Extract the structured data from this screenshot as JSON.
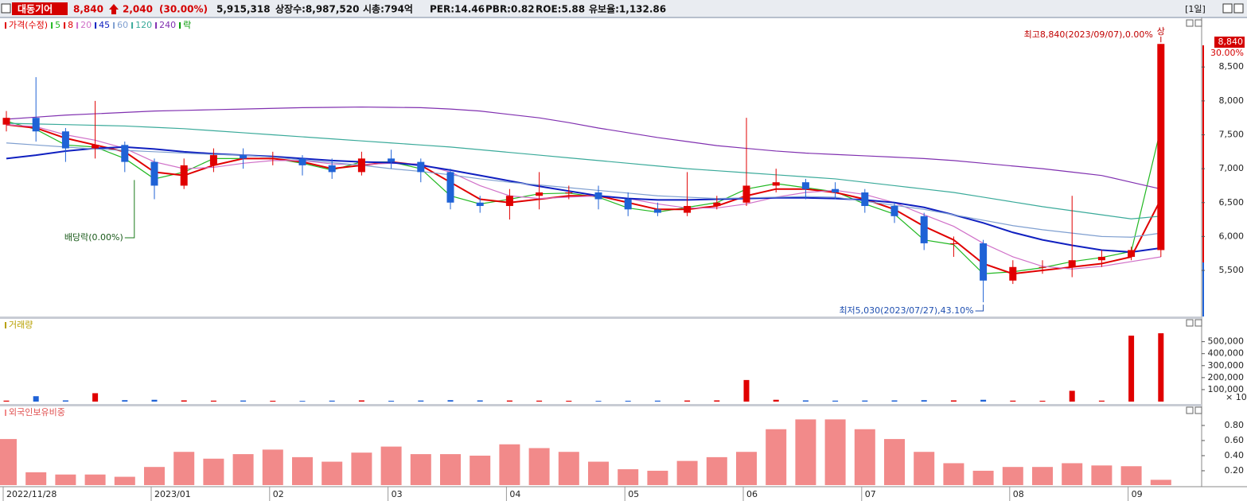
{
  "header": {
    "name": "대동기어",
    "price": "8,840",
    "change": "2,040",
    "change_pct": "(30.00%)",
    "volume": "5,915,318",
    "listed": "상장수:8,987,520",
    "market_cap": "시총:794억",
    "per": "PER:14.46",
    "pbr": "PBR:0.82",
    "roe": "ROE:5.88",
    "reserve": "유보율:1,132.86",
    "period": "[1일]"
  },
  "chart_data": [
    {
      "type": "candlestick",
      "price_name": "가격(수정)",
      "legend_extra": "락",
      "legend_extra_color": "#009900",
      "up_color": "#e00000",
      "down_color": "#1f62d6",
      "categories": [
        "2022/11/28",
        null,
        null,
        null,
        null,
        "2023/01",
        null,
        null,
        null,
        "02",
        null,
        null,
        null,
        "03",
        null,
        null,
        null,
        "04",
        null,
        null,
        null,
        "05",
        null,
        null,
        null,
        "06",
        null,
        null,
        null,
        "07",
        null,
        null,
        null,
        null,
        "08",
        null,
        null,
        null,
        "09",
        null
      ],
      "open": [
        7650,
        7750,
        7550,
        7300,
        7350,
        7100,
        6750,
        7050,
        7200,
        7150,
        7150,
        7050,
        6950,
        7150,
        7100,
        6950,
        6500,
        6450,
        6600,
        6650,
        6650,
        6550,
        6400,
        6350,
        6450,
        6500,
        6750,
        6800,
        6700,
        6650,
        6450,
        6300,
        5900,
        5900,
        5350,
        5550,
        5550,
        5650,
        5700,
        5800
      ],
      "high": [
        7850,
        8350,
        7600,
        8000,
        7400,
        7150,
        7150,
        7300,
        7300,
        7250,
        7200,
        7150,
        7250,
        7280,
        7150,
        7000,
        6600,
        6700,
        6950,
        6750,
        6750,
        6650,
        6500,
        6950,
        6600,
        7750,
        7000,
        6850,
        6800,
        6700,
        6500,
        6350,
        6000,
        5950,
        5650,
        5650,
        6600,
        5800,
        5850,
        8840
      ],
      "low": [
        7550,
        7400,
        7100,
        7150,
        6950,
        6550,
        6700,
        6950,
        7000,
        7050,
        6900,
        6850,
        6900,
        7000,
        6800,
        6400,
        6350,
        6250,
        6400,
        6550,
        6400,
        6300,
        6300,
        6300,
        6400,
        6450,
        6650,
        6550,
        6550,
        6350,
        6200,
        5800,
        5700,
        5030,
        5300,
        5450,
        5400,
        5550,
        5650,
        5700
      ],
      "close": [
        7750,
        7550,
        7300,
        7350,
        7100,
        6750,
        7050,
        7200,
        7150,
        7150,
        7050,
        6950,
        7150,
        7100,
        6950,
        6500,
        6450,
        6600,
        6650,
        6650,
        6550,
        6400,
        6350,
        6450,
        6500,
        6750,
        6800,
        6700,
        6650,
        6450,
        6300,
        5900,
        5900,
        5350,
        5550,
        5550,
        5650,
        5700,
        5800,
        8840
      ],
      "series": [
        {
          "name": "5",
          "color": "#22b822",
          "values": [
            7700,
            7580,
            7350,
            7320,
            7150,
            6850,
            6950,
            7150,
            7150,
            7150,
            7080,
            6980,
            7100,
            7100,
            7000,
            6600,
            6480,
            6550,
            6630,
            6640,
            6580,
            6420,
            6360,
            6430,
            6500,
            6700,
            6780,
            6720,
            6660,
            6480,
            6330,
            5950,
            5880,
            5450,
            5480,
            5540,
            5630,
            5690,
            5780,
            7600
          ]
        },
        {
          "name": "8",
          "color": "#e00000",
          "values": [
            7650,
            7600,
            7450,
            7350,
            7250,
            6950,
            6900,
            7050,
            7150,
            7150,
            7100,
            7000,
            7050,
            7100,
            7050,
            6800,
            6550,
            6500,
            6550,
            6600,
            6600,
            6500,
            6400,
            6400,
            6450,
            6600,
            6700,
            6700,
            6650,
            6550,
            6400,
            6150,
            5950,
            5600,
            5450,
            5500,
            5550,
            5600,
            5700,
            6550
          ]
        },
        {
          "name": "20",
          "color": "#d070c8",
          "values": [
            7650,
            7620,
            7500,
            7420,
            7300,
            7100,
            7000,
            7020,
            7080,
            7120,
            7120,
            7070,
            7060,
            7080,
            7070,
            6950,
            6750,
            6600,
            6560,
            6580,
            6600,
            6560,
            6480,
            6420,
            6420,
            6480,
            6580,
            6650,
            6680,
            6620,
            6500,
            6320,
            6150,
            5900,
            5700,
            5560,
            5520,
            5560,
            5630,
            5700
          ]
        },
        {
          "name": "45",
          "color": "#1020c0",
          "values": [
            7150,
            7200,
            7260,
            7300,
            7320,
            7290,
            7250,
            7220,
            7200,
            7180,
            7150,
            7120,
            7100,
            7090,
            7050,
            6980,
            6900,
            6820,
            6740,
            6670,
            6600,
            6560,
            6540,
            6540,
            6550,
            6560,
            6570,
            6570,
            6560,
            6540,
            6500,
            6430,
            6320,
            6200,
            6060,
            5950,
            5870,
            5800,
            5770,
            5830
          ]
        },
        {
          "name": "60",
          "color": "#7f9fd0",
          "values": [
            7380,
            7350,
            7320,
            7290,
            7270,
            7250,
            7230,
            7210,
            7200,
            7170,
            7130,
            7090,
            7050,
            7000,
            6960,
            6910,
            6850,
            6800,
            6760,
            6720,
            6680,
            6640,
            6600,
            6580,
            6560,
            6570,
            6580,
            6590,
            6580,
            6520,
            6460,
            6400,
            6320,
            6240,
            6160,
            6100,
            6050,
            6000,
            5990,
            6050
          ]
        },
        {
          "name": "120",
          "color": "#3aaa9a",
          "values": [
            7670,
            7660,
            7650,
            7640,
            7630,
            7610,
            7590,
            7560,
            7530,
            7500,
            7470,
            7440,
            7410,
            7380,
            7350,
            7320,
            7280,
            7240,
            7200,
            7160,
            7120,
            7080,
            7040,
            7000,
            6970,
            6940,
            6910,
            6880,
            6850,
            6800,
            6750,
            6700,
            6650,
            6580,
            6510,
            6440,
            6380,
            6320,
            6260,
            6300
          ]
        },
        {
          "name": "240",
          "color": "#8030b0",
          "values": [
            7730,
            7760,
            7790,
            7810,
            7830,
            7850,
            7860,
            7870,
            7880,
            7890,
            7900,
            7905,
            7910,
            7905,
            7900,
            7880,
            7850,
            7800,
            7750,
            7680,
            7600,
            7530,
            7460,
            7400,
            7340,
            7300,
            7260,
            7230,
            7210,
            7190,
            7170,
            7150,
            7120,
            7080,
            7040,
            7000,
            6950,
            6900,
            6800,
            6700
          ]
        }
      ],
      "ylim": [
        4820,
        9230
      ],
      "yticks": [
        {
          "value": 5500,
          "label": "5,500"
        },
        {
          "value": 6000,
          "label": "6,000"
        },
        {
          "value": 6500,
          "label": "6,500"
        },
        {
          "value": 7000,
          "label": "7,000"
        },
        {
          "value": 7500,
          "label": "7,500"
        },
        {
          "value": 8000,
          "label": "8,000"
        },
        {
          "value": 8500,
          "label": "8,500"
        }
      ],
      "high_annotation": "최고8,840(2023/09/07),0.00%",
      "limit_mark": "상",
      "low_annotation": "최저5,030(2023/07/27),43.10%",
      "dividend_annotation": "배당락(0.00%)",
      "last_label": "8,840",
      "last_pct": "30.00%"
    },
    {
      "type": "bar",
      "title": "거래량",
      "unit": "× 10",
      "values": [
        8000,
        45000,
        10000,
        70000,
        12000,
        15000,
        10000,
        8000,
        9000,
        7000,
        6000,
        8000,
        10000,
        7000,
        9000,
        12000,
        10000,
        9000,
        8000,
        7000,
        6000,
        7000,
        8000,
        9000,
        10000,
        180000,
        15000,
        10000,
        8000,
        9000,
        10000,
        12000,
        10000,
        15000,
        8000,
        7000,
        90000,
        8000,
        550000,
        570000
      ],
      "ylim": [
        0,
        670000
      ],
      "yticks": [
        {
          "value": 100000,
          "label": "100,000"
        },
        {
          "value": 200000,
          "label": "200,000"
        },
        {
          "value": 300000,
          "label": "300,000"
        },
        {
          "value": 400000,
          "label": "400,000"
        },
        {
          "value": 500000,
          "label": "500,000"
        }
      ]
    },
    {
      "type": "bar",
      "title": "외국인보유비중",
      "color": "#f28a8a",
      "values": [
        0.62,
        0.18,
        0.15,
        0.15,
        0.12,
        0.25,
        0.45,
        0.36,
        0.42,
        0.48,
        0.38,
        0.32,
        0.44,
        0.52,
        0.42,
        0.42,
        0.4,
        0.55,
        0.5,
        0.45,
        0.32,
        0.22,
        0.2,
        0.33,
        0.38,
        0.45,
        0.75,
        0.88,
        0.88,
        0.75,
        0.62,
        0.45,
        0.3,
        0.2,
        0.25,
        0.25,
        0.3,
        0.27,
        0.26,
        0.08
      ],
      "ylim": [
        0.01,
        1.0
      ],
      "yticks": [
        {
          "value": 0.2,
          "label": "0.20"
        },
        {
          "value": 0.4,
          "label": "0.40"
        },
        {
          "value": 0.6,
          "label": "0.60"
        },
        {
          "value": 0.8,
          "label": "0.80"
        }
      ]
    }
  ]
}
